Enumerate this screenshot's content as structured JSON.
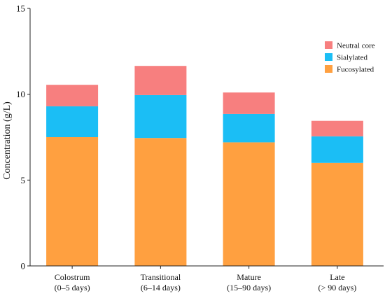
{
  "chart_data": {
    "type": "bar",
    "stacked": true,
    "title": "",
    "xlabel": "",
    "ylabel": "Concentration (g/L)",
    "ylim": [
      0,
      15
    ],
    "yticks": [
      0,
      5,
      10,
      15
    ],
    "categories": [
      {
        "line1": "Colostrum",
        "line2": "(0–5 days)"
      },
      {
        "line1": "Transitional",
        "line2": "(6–14 days)"
      },
      {
        "line1": "Mature",
        "line2": "(15–90 days)"
      },
      {
        "line1": "Late",
        "line2": "(> 90 days)"
      }
    ],
    "series": [
      {
        "name": "Fucosylated",
        "color": "#FFA040",
        "values": [
          7.5,
          7.45,
          7.2,
          6.0
        ]
      },
      {
        "name": "Sialylated",
        "color": "#1BBEF5",
        "values": [
          1.8,
          2.5,
          1.65,
          1.55
        ]
      },
      {
        "name": "Neutral core",
        "color": "#F77F7F",
        "values": [
          1.25,
          1.7,
          1.25,
          0.9
        ]
      }
    ],
    "legend": {
      "placement": "top-right",
      "order": [
        "Neutral core",
        "Sialylated",
        "Fucosylated"
      ]
    },
    "grid": false
  }
}
